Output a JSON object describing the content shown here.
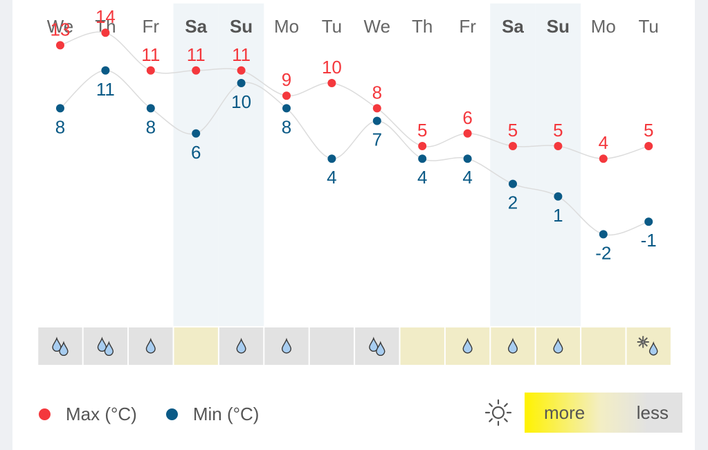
{
  "chart_data": {
    "type": "line",
    "days": [
      {
        "label": "We",
        "weekend": false
      },
      {
        "label": "Th",
        "weekend": false
      },
      {
        "label": "Fr",
        "weekend": false
      },
      {
        "label": "Sa",
        "weekend": true
      },
      {
        "label": "Su",
        "weekend": true
      },
      {
        "label": "Mo",
        "weekend": false
      },
      {
        "label": "Tu",
        "weekend": false
      },
      {
        "label": "We",
        "weekend": false
      },
      {
        "label": "Th",
        "weekend": false
      },
      {
        "label": "Fr",
        "weekend": false
      },
      {
        "label": "Sa",
        "weekend": true
      },
      {
        "label": "Su",
        "weekend": true
      },
      {
        "label": "Mo",
        "weekend": false
      },
      {
        "label": "Tu",
        "weekend": false
      }
    ],
    "series": [
      {
        "name": "Max (°C)",
        "color": "#f4383d",
        "values": [
          13,
          14,
          11,
          11,
          11,
          9,
          10,
          8,
          5,
          6,
          5,
          5,
          4,
          5
        ]
      },
      {
        "name": "Min (°C)",
        "color": "#0a5a86",
        "values": [
          8,
          11,
          8,
          6,
          10,
          8,
          4,
          7,
          4,
          4,
          2,
          1,
          -2,
          -1
        ]
      }
    ],
    "sunshine": [
      "less",
      "less",
      "less",
      "more",
      "less",
      "less",
      "less",
      "less",
      "more",
      "more",
      "more",
      "more",
      "more",
      "more"
    ],
    "precipitation": [
      "drops-2",
      "drops-2",
      "drop-1",
      "none",
      "drop-1",
      "drop-1",
      "none",
      "drops-2",
      "none",
      "drop-1",
      "drop-1",
      "drop-1",
      "none",
      "snow-rain"
    ],
    "colors": {
      "sunny_cell": "#f1ecc7",
      "cloudy_cell": "#e2e2e2",
      "weekend_band": "#f0f5f8"
    },
    "grid": false,
    "legend_placement": "bottom-left"
  },
  "legend": {
    "max_label": "Max (°C)",
    "min_label": "Min (°C)"
  },
  "sunshine_scale": {
    "icon": "sun-icon",
    "more_label": "more",
    "less_label": "less"
  }
}
